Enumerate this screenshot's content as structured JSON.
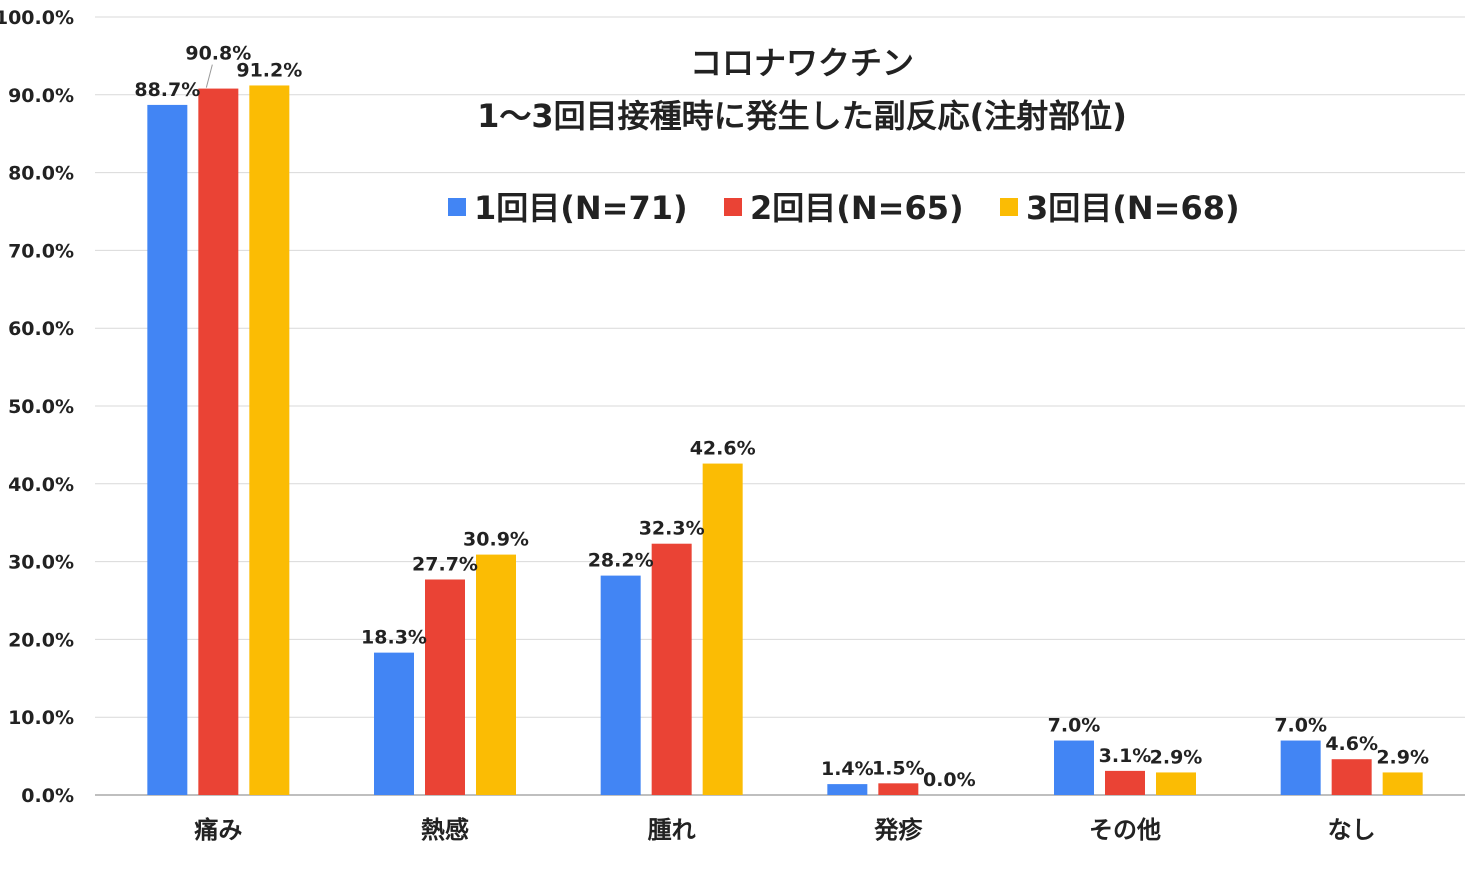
{
  "chart_data": {
    "type": "bar",
    "title": "コロナワクチン",
    "subtitle": "1〜3回目接種時に発生した副反応(注射部位)",
    "categories": [
      "痛み",
      "熱感",
      "腫れ",
      "発疹",
      "その他",
      "なし"
    ],
    "series": [
      {
        "name": "1回目(N=71)",
        "color": "#4285F4",
        "values": [
          88.7,
          18.3,
          28.2,
          1.4,
          7.0,
          7.0
        ],
        "labels": [
          "88.7%",
          "18.3%",
          "28.2%",
          "1.4%",
          "7.0%",
          "7.0%"
        ]
      },
      {
        "name": "2回目(N=65)",
        "color": "#EA4335",
        "values": [
          90.8,
          27.7,
          32.3,
          1.5,
          3.1,
          4.6
        ],
        "labels": [
          "90.8%",
          "27.7%",
          "32.3%",
          "1.5%",
          "3.1%",
          "4.6%"
        ]
      },
      {
        "name": "3回目(N=68)",
        "color": "#FBBC04",
        "values": [
          91.2,
          30.9,
          42.6,
          0.0,
          2.9,
          2.9
        ],
        "labels": [
          "91.2%",
          "30.9%",
          "42.6%",
          "0.0%",
          "2.9%",
          "2.9%"
        ]
      }
    ],
    "ylim": [
      0,
      100
    ],
    "yticks": [
      "0.0%",
      "10.0%",
      "20.0%",
      "30.0%",
      "40.0%",
      "50.0%",
      "60.0%",
      "70.0%",
      "80.0%",
      "90.0%",
      "100.0%"
    ],
    "xlabel": "",
    "ylabel": "",
    "grid": true,
    "legend_position": "top-center"
  }
}
